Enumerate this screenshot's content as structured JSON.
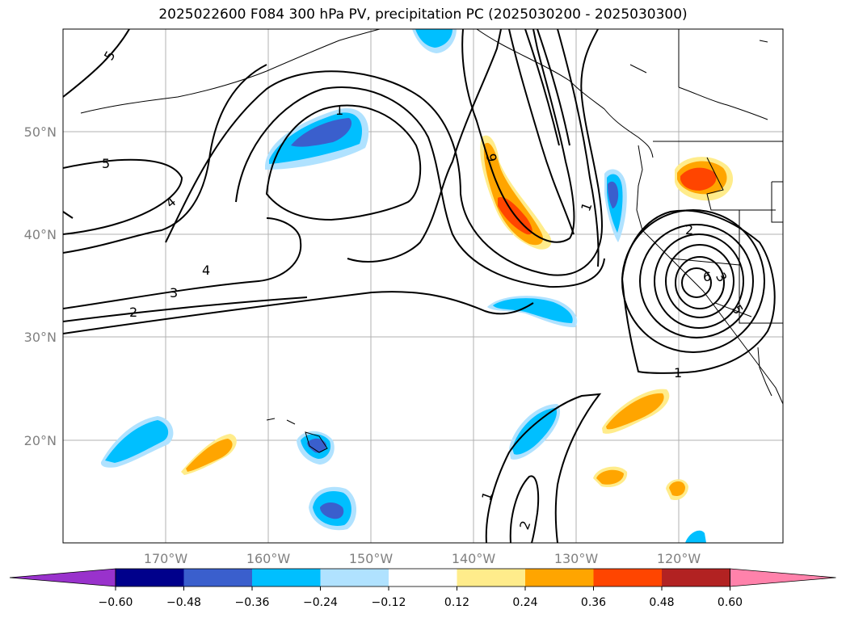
{
  "title": "2025022600 F084 300 hPa PV, precipitation PC (2025030200 - 2025030300)",
  "map": {
    "lon_labels": [
      "170°W",
      "160°W",
      "150°W",
      "140°W",
      "130°W",
      "120°W"
    ],
    "lat_labels": [
      "50°N",
      "40°N",
      "30°N",
      "20°N"
    ],
    "pv_contour_labels": [
      "5",
      "5",
      "4",
      "4",
      "3",
      "2",
      "1",
      "9",
      "1",
      "2",
      "6",
      "3",
      "5",
      "1",
      "1",
      "2"
    ]
  },
  "colorbar": {
    "ticks": [
      "−0.60",
      "−0.48",
      "−0.36",
      "−0.24",
      "−0.12",
      "0.12",
      "0.24",
      "0.36",
      "0.48",
      "0.60"
    ],
    "colors": [
      "#9932CC",
      "#00008B",
      "#3A5FCD",
      "#00BFFF",
      "#B0E2FF",
      "#FFFFFF",
      "#FFEC8B",
      "#FFA500",
      "#FF4500",
      "#B22222",
      "#FF82AB"
    ]
  }
}
